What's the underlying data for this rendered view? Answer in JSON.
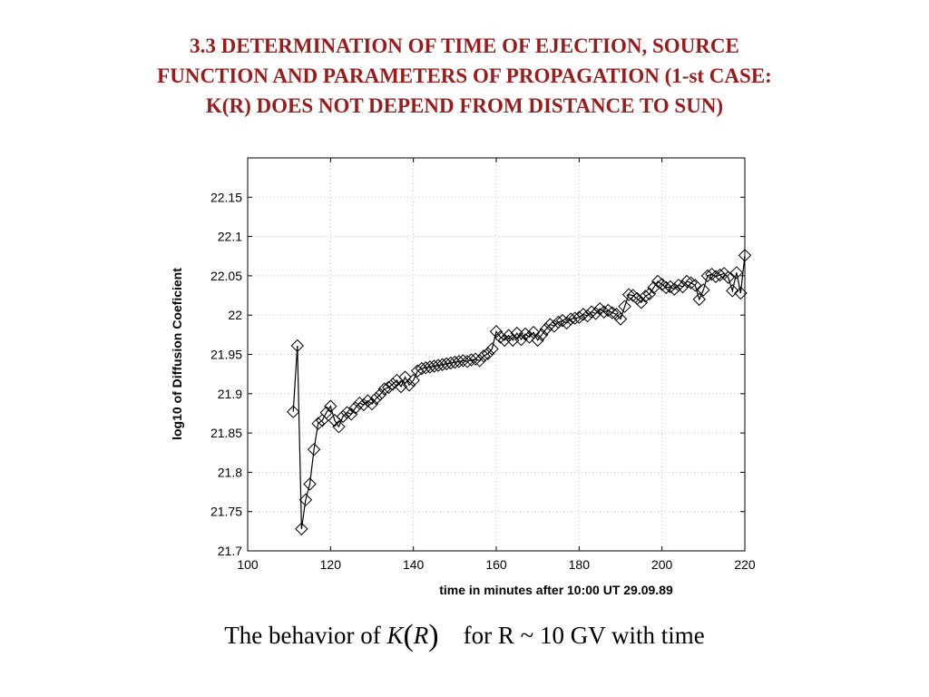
{
  "slide_title": [
    "3.3 DETERMINATION OF TIME OF EJECTION, SOURCE",
    "FUNCTION AND PARAMETERS OF PROPAGATION (1-st CASE:",
    "K(R) DOES NOT DEPEND FROM DISTANCE TO SUN)"
  ],
  "caption": {
    "prefix": "The behavior of ",
    "func": "K",
    "arg": "R",
    "suffix": "for R ~ 10 GV with time"
  },
  "colors": {
    "title": "#9b1b1b",
    "line": "#000000",
    "axis": "#000000",
    "grid": "#bdbdbd"
  },
  "chart_data": {
    "type": "line",
    "marker": "diamond",
    "xlabel": "time in minutes after 10:00 UT 29.09.89",
    "ylabel": "log10 of Diffusion Coeficient",
    "xlim": [
      100,
      220
    ],
    "ylim": [
      21.7,
      22.2
    ],
    "xticks": [
      100,
      120,
      140,
      160,
      180,
      200,
      220
    ],
    "yticks": [
      21.7,
      21.75,
      21.8,
      21.85,
      21.9,
      21.95,
      22,
      22.05,
      22.1,
      22.15
    ],
    "ytick_labels": [
      "21.7",
      "21.75",
      "21.8",
      "21.85",
      "21.9",
      "21.95",
      "22",
      "22.05",
      "22.1",
      "22.15"
    ],
    "grid": false,
    "series": [
      {
        "x": [
          111,
          112,
          113,
          114,
          115,
          116,
          117,
          118,
          119,
          120,
          121,
          122,
          123,
          124,
          125,
          126,
          127,
          128,
          129,
          130,
          131,
          132,
          133,
          134,
          135,
          136,
          137,
          138,
          139,
          140,
          141,
          142,
          143,
          144,
          145,
          146,
          147,
          148,
          149,
          150,
          151,
          152,
          153,
          154,
          155,
          156,
          157,
          158,
          159,
          160,
          161,
          162,
          163,
          164,
          165,
          166,
          167,
          168,
          169,
          170,
          171,
          172,
          173,
          174,
          175,
          176,
          177,
          178,
          179,
          180,
          181,
          182,
          183,
          184,
          185,
          186,
          187,
          188,
          189,
          190,
          191,
          192,
          193,
          194,
          195,
          196,
          197,
          198,
          199,
          200,
          201,
          202,
          203,
          204,
          205,
          206,
          207,
          208,
          209,
          210,
          211,
          212,
          213,
          214,
          215,
          216,
          217,
          218,
          219,
          220
        ],
        "y": [
          21.877,
          21.961,
          21.728,
          21.765,
          21.785,
          21.829,
          21.862,
          21.866,
          21.876,
          21.884,
          21.866,
          21.858,
          21.871,
          21.876,
          21.874,
          21.882,
          21.888,
          21.886,
          21.891,
          21.887,
          21.894,
          21.899,
          21.906,
          21.908,
          21.912,
          21.917,
          21.909,
          21.921,
          21.911,
          21.917,
          21.929,
          21.932,
          21.933,
          21.934,
          21.935,
          21.936,
          21.937,
          21.938,
          21.939,
          21.94,
          21.941,
          21.942,
          21.941,
          21.943,
          21.944,
          21.942,
          21.948,
          21.951,
          21.957,
          21.979,
          21.972,
          21.968,
          21.974,
          21.968,
          21.977,
          21.969,
          21.976,
          21.972,
          21.978,
          21.968,
          21.975,
          21.982,
          21.988,
          21.986,
          21.991,
          21.993,
          21.99,
          21.995,
          21.996,
          21.997,
          22.001,
          21.999,
          22.004,
          22.002,
          22.008,
          22.004,
          22.006,
          22.003,
          22.001,
          21.995,
          22.011,
          22.026,
          22.025,
          22.021,
          22.016,
          22.024,
          22.027,
          22.035,
          22.043,
          22.039,
          22.035,
          22.036,
          22.033,
          22.038,
          22.036,
          22.043,
          22.041,
          22.038,
          22.02,
          22.032,
          22.05,
          22.052,
          22.049,
          22.051,
          22.053,
          22.048,
          22.031,
          22.054,
          22.028,
          22.076
        ]
      }
    ]
  }
}
